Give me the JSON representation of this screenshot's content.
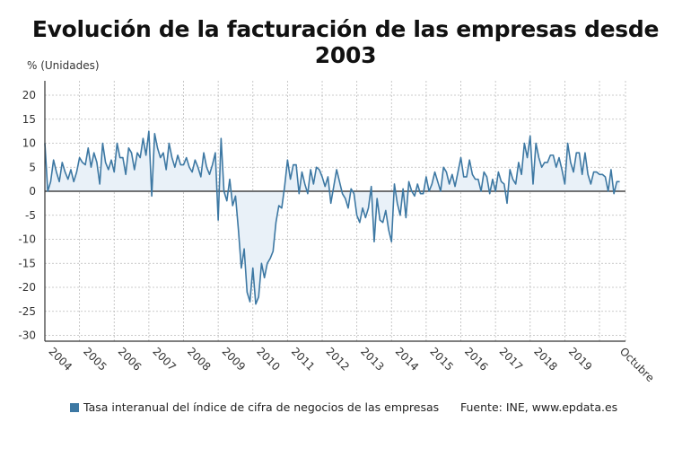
{
  "title": "Evolución de la facturación de las empresas desde 2003",
  "units_label": "% (Unidades)",
  "legend_label": "Tasa interanual del índice de cifra de negocios de las empresas",
  "source": "Fuente: INE, www.epdata.es",
  "colors": {
    "line": "#3d78a3",
    "fill": "#e9f1f8",
    "grid": "#bbbbbb",
    "zero": "#222222"
  },
  "chart_data": {
    "type": "area",
    "title": "Evolución de la facturación de las empresas desde 2003",
    "ylabel": "% (Unidades)",
    "ylim": [
      -31,
      23
    ],
    "yticks": [
      20,
      15,
      10,
      5,
      0,
      -5,
      -10,
      -15,
      -20,
      -25,
      -30
    ],
    "xticks": [
      "2004",
      "2005",
      "2006",
      "2007",
      "2008",
      "2009",
      "2010",
      "2011",
      "2012",
      "2013",
      "2014",
      "2015",
      "2016",
      "2017",
      "2018",
      "2019",
      "Octubre"
    ],
    "grid": true,
    "legend_position": "bottom",
    "x_start": "2003-01",
    "x_end": "2019-10",
    "frequency": "monthly",
    "series": [
      {
        "name": "Tasa interanual del índice de cifra de negocios de las empresas",
        "values": [
          10,
          0,
          2,
          6.5,
          4,
          2,
          6,
          4,
          2.5,
          4.5,
          2,
          4,
          7,
          6,
          5.5,
          9,
          5,
          8,
          6,
          1.5,
          10,
          6,
          4.5,
          6.5,
          4,
          10,
          7,
          7,
          3.5,
          9,
          8,
          4.5,
          8,
          7,
          11,
          7.5,
          12.5,
          -1,
          12,
          9,
          7,
          8,
          4.5,
          10,
          7,
          5,
          7.5,
          5.5,
          5.5,
          7,
          5,
          4,
          6.5,
          5,
          3,
          8,
          5,
          3.5,
          5.5,
          8,
          -6,
          11,
          0,
          -2,
          2.5,
          -3,
          -1,
          -8,
          -16,
          -12,
          -21,
          -23,
          -16,
          -23.5,
          -22,
          -15,
          -18,
          -15,
          -14,
          -12.5,
          -6.5,
          -3,
          -3.5,
          1,
          6.5,
          2.5,
          5.5,
          5.5,
          -0.5,
          4,
          1.5,
          -0.5,
          4.5,
          1.5,
          5,
          4.5,
          3,
          1,
          3,
          -2.5,
          1,
          4.5,
          2,
          -0.5,
          -1.5,
          -3.5,
          0.5,
          -0.5,
          -5,
          -6.5,
          -3.5,
          -5.5,
          -3.5,
          1,
          -10.5,
          -1.5,
          -6,
          -6.5,
          -4,
          -8,
          -10.5,
          1.5,
          -2.5,
          -5,
          0.5,
          -5.5,
          2,
          0,
          -1,
          1.5,
          -0.5,
          -0.5,
          3,
          0,
          1.5,
          4,
          2,
          0,
          5,
          4,
          1.5,
          3.5,
          1,
          4,
          7,
          3,
          3,
          6.5,
          3.5,
          2.5,
          2.5,
          0,
          4,
          3,
          -0.5,
          2.5,
          0,
          4,
          2,
          1.5,
          -2.5,
          4.5,
          2.5,
          1.5,
          6,
          3.5,
          10,
          7,
          11.5,
          1.5,
          10,
          7,
          5,
          6,
          6,
          7.5,
          7.5,
          5,
          7,
          4.5,
          1.5,
          10,
          6,
          4,
          8,
          8,
          3.5,
          8,
          3.5,
          1.5,
          4,
          4,
          3.5,
          3.5,
          3,
          0,
          4.5,
          -0.5,
          2,
          2
        ]
      }
    ]
  }
}
